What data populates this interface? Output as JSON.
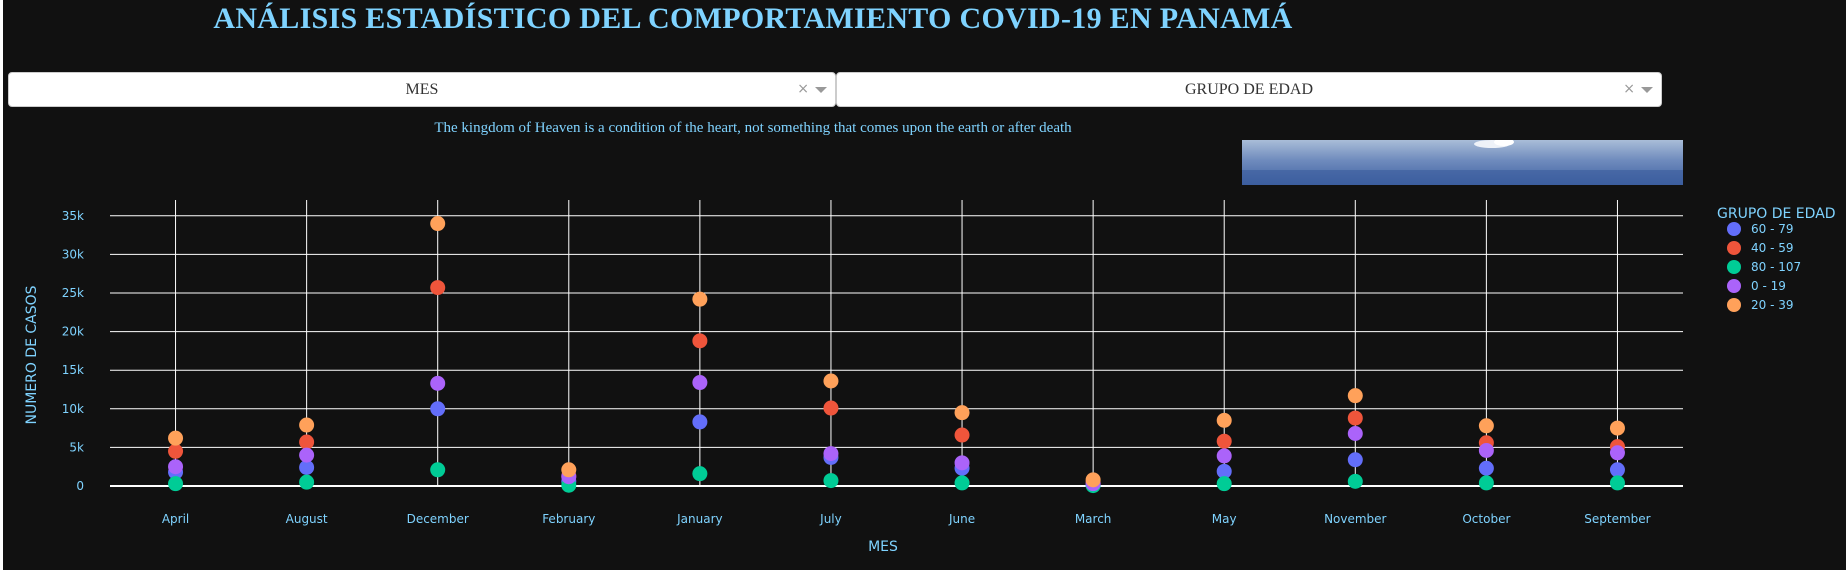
{
  "page": {
    "title": "ANÁLISIS ESTADÍSTICO DEL COMPORTAMIENTO COVID-19 EN PANAMÁ",
    "quote": "The kingdom of Heaven is a condition of the heart, not something that comes upon the earth or after death"
  },
  "filters": [
    {
      "label": "MES",
      "clear": "×"
    },
    {
      "label": "GRUPO DE EDAD",
      "clear": "×"
    }
  ],
  "chart_data": {
    "type": "scatter",
    "xlabel": "MES",
    "ylabel": "NUMERO DE CASOS",
    "ylim": [
      0,
      37000
    ],
    "yticks": [
      0,
      5000,
      10000,
      15000,
      20000,
      25000,
      30000,
      35000
    ],
    "ytick_labels": [
      "0",
      "5k",
      "10k",
      "15k",
      "20k",
      "25k",
      "30k",
      "35k"
    ],
    "categories": [
      "April",
      "August",
      "December",
      "February",
      "January",
      "July",
      "June",
      "March",
      "May",
      "November",
      "October",
      "September"
    ],
    "grid": true,
    "legend": {
      "title": "GRUPO DE EDAD",
      "position": "right"
    },
    "series": [
      {
        "name": "60 - 79",
        "color": "#636efa",
        "values": [
          1800,
          2400,
          10000,
          600,
          8300,
          3700,
          2300,
          150,
          1900,
          3400,
          2300,
          2100
        ]
      },
      {
        "name": "40 - 59",
        "color": "#ef553b",
        "values": [
          4500,
          5700,
          25700,
          1300,
          18800,
          10100,
          6600,
          500,
          5800,
          8800,
          5600,
          5100
        ]
      },
      {
        "name": "80 - 107",
        "color": "#00cc96",
        "values": [
          300,
          500,
          2100,
          100,
          1600,
          700,
          400,
          50,
          300,
          600,
          400,
          400
        ]
      },
      {
        "name": "0 - 19",
        "color": "#ab63fa",
        "values": [
          2500,
          4000,
          13300,
          1200,
          13400,
          4200,
          3000,
          300,
          3900,
          6800,
          4600,
          4300
        ]
      },
      {
        "name": "20 - 39",
        "color": "#ffa15a",
        "values": [
          6200,
          7900,
          34000,
          2100,
          24200,
          13600,
          9500,
          800,
          8500,
          11700,
          7800,
          7500
        ]
      }
    ]
  }
}
